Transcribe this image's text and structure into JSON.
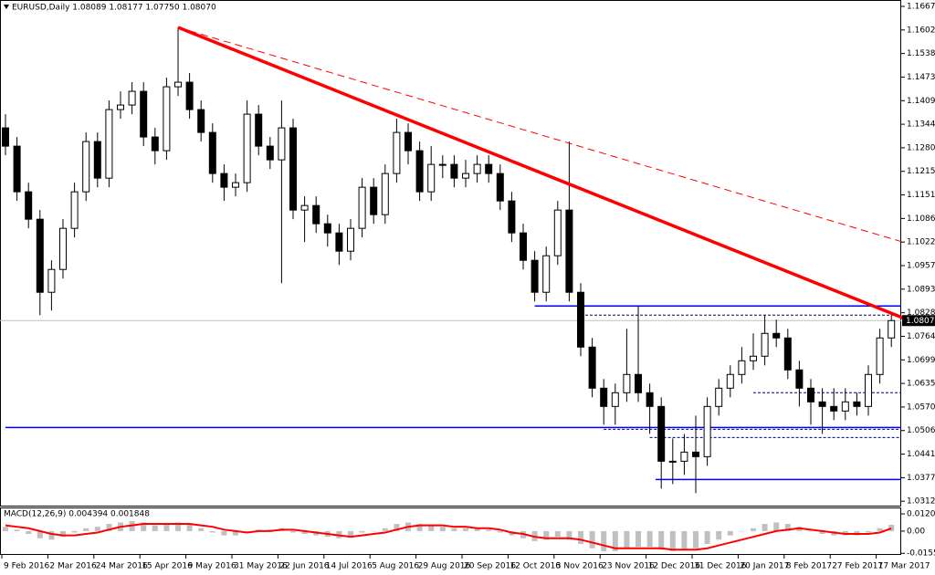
{
  "chart_data": [
    {
      "type": "candlestick",
      "title": "EURUSD,Daily 1.08089 1.08177 1.07750 1.08070",
      "categories": [
        "9 Feb 2016",
        null,
        null,
        null,
        "2 Mar 2016",
        null,
        null,
        null,
        "24 Mar 2016",
        null,
        null,
        null,
        "15 Apr 2016",
        null,
        null,
        null,
        "9 May 2016",
        null,
        null,
        null,
        "31 May 2016",
        null,
        null,
        null,
        "22 Jun 2016",
        null,
        null,
        null,
        "14 Jul 2016",
        null,
        null,
        null,
        "5 Aug 2016",
        null,
        null,
        null,
        "29 Aug 2016",
        null,
        null,
        null,
        "20 Sep 2016",
        null,
        null,
        null,
        "12 Oct 2016",
        null,
        null,
        null,
        "3 Nov 2016",
        null,
        null,
        null,
        "23 Nov 2016",
        null,
        null,
        null,
        "12 Dec 2016",
        null,
        null,
        null,
        "31 Dec 2016",
        null,
        null,
        null,
        "20 Jan 2017",
        null,
        null,
        null,
        "8 Feb 2017",
        null,
        null,
        null,
        "27 Feb 2017",
        null,
        null,
        null,
        "17 Mar 2017",
        null
      ],
      "open": [
        1.13345,
        1.12845,
        1.11595,
        1.10845,
        1.08845,
        1.0947,
        1.10595,
        1.11595,
        1.1297,
        1.1197,
        1.13845,
        1.1397,
        1.14345,
        1.13095,
        1.1272,
        1.1447,
        1.14595,
        1.13845,
        1.1322,
        1.12095,
        1.1172,
        1.11845,
        1.1372,
        1.12845,
        1.1247,
        1.13345,
        1.11095,
        1.1122,
        1.1072,
        1.1047,
        1.0997,
        1.10595,
        1.1172,
        1.1097,
        1.12095,
        1.1322,
        1.1272,
        1.11595,
        1.12345,
        1.12345,
        1.1197,
        1.12095,
        1.12345,
        1.12095,
        1.11345,
        1.1047,
        1.0972,
        1.08845,
        1.09845,
        1.11095,
        1.08845,
        1.07345,
        1.0622,
        1.0572,
        1.06095,
        1.06595,
        1.06095,
        1.0572,
        1.0422,
        1.0422,
        1.0447,
        1.04345,
        1.0572,
        1.0622,
        1.06595,
        1.0697,
        1.07095,
        1.0772,
        1.07595,
        1.0672,
        1.0622,
        1.05845,
        1.0572,
        1.05595,
        1.05845,
        1.0572,
        1.06595,
        1.07595
      ],
      "high": [
        1.1372,
        1.13095,
        1.11845,
        1.11095,
        1.0972,
        1.10845,
        1.11845,
        1.1322,
        1.1322,
        1.14095,
        1.14345,
        1.14595,
        1.14595,
        1.13345,
        1.1472,
        1.16095,
        1.14845,
        1.14095,
        1.1347,
        1.12345,
        1.12095,
        1.14095,
        1.1397,
        1.13095,
        1.14095,
        1.13595,
        1.1147,
        1.1147,
        1.1097,
        1.1072,
        1.10845,
        1.1197,
        1.1197,
        1.12345,
        1.13595,
        1.1347,
        1.1297,
        1.12845,
        1.12595,
        1.12595,
        1.1247,
        1.12595,
        1.12595,
        1.12345,
        1.11595,
        1.1072,
        1.0997,
        1.10095,
        1.11345,
        1.1297,
        1.09095,
        1.07595,
        1.0647,
        1.06345,
        1.07845,
        1.0847,
        1.06345,
        1.0597,
        1.04845,
        1.0497,
        1.0547,
        1.0597,
        1.0647,
        1.06845,
        1.07345,
        1.0772,
        1.0822,
        1.08095,
        1.07845,
        1.0697,
        1.0647,
        1.0622,
        1.0622,
        1.0622,
        1.06095,
        1.06845,
        1.07845,
        1.0822
      ],
      "low": [
        1.12595,
        1.11345,
        1.10595,
        1.0822,
        1.08345,
        1.0922,
        1.10345,
        1.11345,
        1.1172,
        1.1172,
        1.13595,
        1.1372,
        1.12845,
        1.12345,
        1.1247,
        1.1422,
        1.13595,
        1.1297,
        1.11845,
        1.11345,
        1.1147,
        1.11595,
        1.12595,
        1.1222,
        1.09095,
        1.10845,
        1.1022,
        1.1047,
        1.10095,
        1.09595,
        1.0972,
        1.10345,
        1.1072,
        1.1072,
        1.11845,
        1.12345,
        1.11345,
        1.11345,
        1.1197,
        1.1172,
        1.1172,
        1.11845,
        1.11845,
        1.11095,
        1.1022,
        1.0947,
        1.08595,
        1.08595,
        1.09595,
        1.08595,
        1.07095,
        1.0597,
        1.0522,
        1.0522,
        1.05845,
        1.05845,
        1.0497,
        1.0347,
        1.03595,
        1.03845,
        1.03345,
        1.04095,
        1.0547,
        1.0597,
        1.06345,
        1.0672,
        1.06845,
        1.07345,
        1.0647,
        1.0572,
        1.0522,
        1.0497,
        1.05345,
        1.05345,
        1.0547,
        1.0547,
        1.06345,
        1.07345
      ],
      "close": [
        1.12845,
        1.11595,
        1.10845,
        1.08845,
        1.0947,
        1.10595,
        1.11595,
        1.1297,
        1.1197,
        1.13845,
        1.1397,
        1.14345,
        1.13095,
        1.1272,
        1.1447,
        1.14595,
        1.13845,
        1.1322,
        1.12095,
        1.1172,
        1.11845,
        1.1372,
        1.12845,
        1.1247,
        1.13345,
        1.11095,
        1.1122,
        1.1072,
        1.1047,
        1.0997,
        1.10595,
        1.1172,
        1.1097,
        1.12095,
        1.1322,
        1.1272,
        1.11595,
        1.12345,
        1.12345,
        1.1197,
        1.12095,
        1.12345,
        1.12095,
        1.11345,
        1.1047,
        1.0972,
        1.08845,
        1.09845,
        1.11095,
        1.08845,
        1.07345,
        1.0622,
        1.0572,
        1.06095,
        1.06595,
        1.06095,
        1.0572,
        1.0422,
        1.0422,
        1.0447,
        1.04345,
        1.0572,
        1.0622,
        1.06595,
        1.0697,
        1.07095,
        1.0772,
        1.07595,
        1.0672,
        1.0622,
        1.05845,
        1.0572,
        1.05595,
        1.05845,
        1.0572,
        1.06595,
        1.07595,
        1.0807
      ],
      "up_color": "#ffffff",
      "down_color": "#000000",
      "wick_color": "#000000",
      "ylim": [
        1.0303,
        1.16845
      ],
      "yticks": [
        {
          "value": 1.1667,
          "label": "1.16670"
        },
        1.16025,
        {
          "value": 1.1538,
          "label": "1.15380"
        },
        1.14735,
        {
          "value": 1.1409,
          "label": "1.14090"
        },
        1.13445,
        {
          "value": 1.128,
          "label": "1.12800"
        },
        1.12155,
        {
          "value": 1.1151,
          "label": "1.11510"
        },
        1.10865,
        {
          "value": 1.1022,
          "label": "1.10220"
        },
        1.09575,
        {
          "value": 1.0893,
          "label": "1.08930"
        },
        1.08285,
        {
          "value": 1.0764,
          "label": "1.07640"
        },
        1.06995,
        {
          "value": 1.0635,
          "label": "1.06350"
        },
        1.05705,
        {
          "value": 1.0506,
          "label": "1.05060"
        },
        1.04415,
        {
          "value": 1.0377,
          "label": "1.03770"
        },
        1.03125
      ],
      "current_price": {
        "value": 1.0807,
        "label": "1.08070"
      },
      "trendlines": [
        {
          "x": [
            15,
            78
          ],
          "y": [
            1.16095,
            1.08145
          ],
          "color": "#ff0000",
          "dashed": false
        },
        {
          "x": [
            15,
            78
          ],
          "y": [
            1.16095,
            1.1022
          ],
          "color": "#ff0000",
          "dashed": true
        }
      ],
      "hlines": [
        {
          "price": 1.0847,
          "x": [
            46,
            78
          ],
          "color": "#0000ff",
          "dashed": false
        },
        {
          "price": 1.05145,
          "x": [
            0,
            78
          ],
          "color": "#0000ff",
          "dashed": false
        },
        {
          "price": 1.0372,
          "x": [
            56.5,
            78
          ],
          "color": "#0000ff",
          "dashed": false
        },
        {
          "price": 1.0822,
          "x": [
            50,
            78
          ],
          "color": "#000080",
          "dashed": true
        },
        {
          "price": 1.06095,
          "x": [
            65,
            78
          ],
          "color": "#000080",
          "dashed": true
        },
        {
          "price": 1.05095,
          "x": [
            52,
            78
          ],
          "color": "#000080",
          "dashed": true
        },
        {
          "price": 1.0487,
          "x": [
            56,
            78
          ],
          "color": "#000080",
          "dashed": true
        }
      ]
    },
    {
      "type": "macd",
      "title": "MACD(12,26,9) 0.004394 0.001848",
      "histogram": {
        "color": "#c0c0c0",
        "values": [
          0.003,
          0.001,
          -0.002,
          -0.005,
          -0.006,
          -0.004,
          -0.001,
          0.002,
          0.003,
          0.005,
          0.006,
          0.007,
          0.006,
          0.004,
          0.005,
          0.006,
          0.005,
          0.002,
          -0.001,
          -0.003,
          -0.003,
          0.0,
          0.001,
          0.001,
          0.002,
          -0.001,
          -0.002,
          -0.003,
          -0.004,
          -0.005,
          -0.004,
          -0.001,
          0.0,
          0.002,
          0.005,
          0.006,
          0.005,
          0.004,
          0.003,
          0.002,
          0.002,
          0.002,
          0.001,
          -0.001,
          -0.003,
          -0.005,
          -0.007,
          -0.006,
          -0.004,
          -0.006,
          -0.009,
          -0.012,
          -0.014,
          -0.014,
          -0.012,
          -0.011,
          -0.011,
          -0.013,
          -0.014,
          -0.013,
          -0.012,
          -0.009,
          -0.006,
          -0.003,
          0.0,
          0.002,
          0.005,
          0.006,
          0.005,
          0.003,
          0.0,
          -0.002,
          -0.003,
          -0.003,
          -0.003,
          -0.001,
          0.002,
          0.004394
        ]
      },
      "signal": {
        "color": "#ff0000",
        "values": [
          0.004,
          0.003,
          0.002,
          0.0,
          -0.002,
          -0.003,
          -0.003,
          -0.002,
          -0.001,
          0.001,
          0.003,
          0.004,
          0.005,
          0.005,
          0.005,
          0.005,
          0.005,
          0.004,
          0.003,
          0.001,
          0.0,
          -0.001,
          0.0,
          0.0,
          0.001,
          0.001,
          0.0,
          -0.001,
          -0.002,
          -0.003,
          -0.004,
          -0.003,
          -0.002,
          -0.001,
          0.001,
          0.003,
          0.004,
          0.004,
          0.004,
          0.003,
          0.003,
          0.002,
          0.002,
          0.001,
          -0.001,
          -0.002,
          -0.004,
          -0.005,
          -0.005,
          -0.005,
          -0.006,
          -0.008,
          -0.01,
          -0.012,
          -0.012,
          -0.012,
          -0.012,
          -0.012,
          -0.013,
          -0.013,
          -0.013,
          -0.012,
          -0.01,
          -0.008,
          -0.006,
          -0.004,
          -0.002,
          0.0,
          0.001,
          0.002,
          0.001,
          0.0,
          -0.001,
          -0.002,
          -0.002,
          -0.002,
          -0.001,
          0.001848
        ]
      },
      "ylim": [
        -0.016,
        0.0165
      ],
      "yticks": [
        0.012013,
        {
          "value": 0,
          "label": "0.00"
        },
        -0.015513
      ]
    }
  ]
}
